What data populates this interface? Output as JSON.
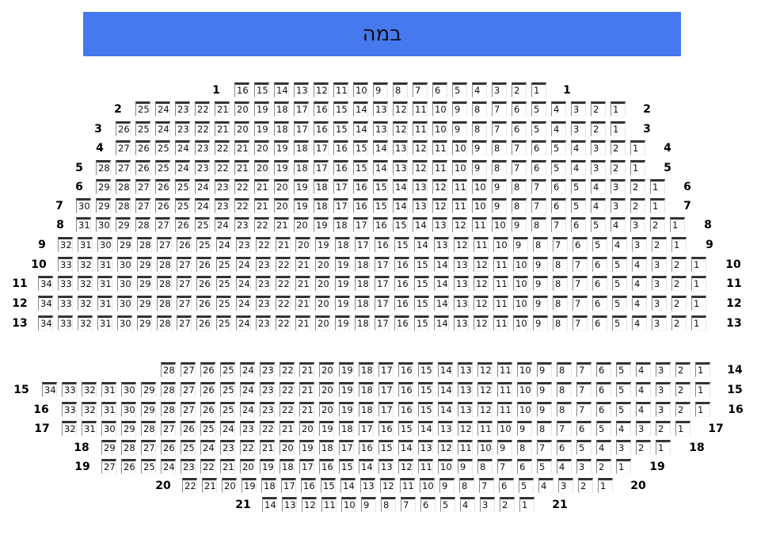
{
  "stage": {
    "label": "במה",
    "color": "#4678ee"
  },
  "rows": [
    {
      "label": "1",
      "seats": 16,
      "left_label": true,
      "right_label": true
    },
    {
      "label": "2",
      "seats": 25,
      "left_label": true,
      "right_label": true
    },
    {
      "label": "3",
      "seats": 26,
      "left_label": true,
      "right_label": true
    },
    {
      "label": "4",
      "seats": 27,
      "left_label": true,
      "right_label": true
    },
    {
      "label": "5",
      "seats": 28,
      "left_label": true,
      "right_label": true
    },
    {
      "label": "6",
      "seats": 29,
      "left_label": true,
      "right_label": true
    },
    {
      "label": "7",
      "seats": 30,
      "left_label": true,
      "right_label": true
    },
    {
      "label": "8",
      "seats": 31,
      "left_label": true,
      "right_label": true
    },
    {
      "label": "9",
      "seats": 32,
      "left_label": true,
      "right_label": true
    },
    {
      "label": "10",
      "seats": 33,
      "left_label": true,
      "right_label": true
    },
    {
      "label": "11",
      "seats": 34,
      "left_label": true,
      "right_label": true
    },
    {
      "label": "12",
      "seats": 34,
      "left_label": true,
      "right_label": true
    },
    {
      "label": "13",
      "seats": 34,
      "left_label": true,
      "right_label": true
    },
    {
      "label": "14",
      "seats": 28,
      "left_label": false,
      "right_label": true
    },
    {
      "label": "15",
      "seats": 34,
      "left_label": true,
      "right_label": true
    },
    {
      "label": "16",
      "seats": 33,
      "left_label": true,
      "right_label": true
    },
    {
      "label": "17",
      "seats": 32,
      "left_label": true,
      "right_label": true
    },
    {
      "label": "18",
      "seats": 29,
      "left_label": true,
      "right_label": true
    },
    {
      "label": "19",
      "seats": 27,
      "left_label": true,
      "right_label": true
    },
    {
      "label": "20",
      "seats": 22,
      "left_label": true,
      "right_label": true
    },
    {
      "label": "21",
      "seats": 14,
      "left_label": true,
      "right_label": true
    }
  ]
}
